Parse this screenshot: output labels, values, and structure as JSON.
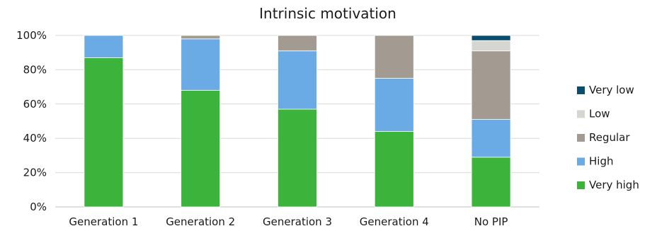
{
  "chart_data": {
    "type": "bar",
    "stacked": true,
    "title": "Intrinsic motivation",
    "xlabel": "",
    "ylabel": "",
    "ylim": [
      0,
      100
    ],
    "y_ticks": [
      "0%",
      "20%",
      "40%",
      "60%",
      "80%",
      "100%"
    ],
    "grid": true,
    "legend_position": "right",
    "categories": [
      "Generation 1",
      "Generation 2",
      "Generation 3",
      "Generation 4",
      "No PIP"
    ],
    "series": [
      {
        "name": "Very high",
        "color": "#3cb33b",
        "values": [
          87,
          68,
          57,
          44,
          29
        ]
      },
      {
        "name": "High",
        "color": "#6aabe5",
        "values": [
          13,
          30,
          34,
          31,
          22
        ]
      },
      {
        "name": "Regular",
        "color": "#a39b92",
        "values": [
          0,
          2,
          9,
          25,
          40
        ]
      },
      {
        "name": "Low",
        "color": "#d5d5d1",
        "values": [
          0,
          0,
          0,
          0,
          6
        ]
      },
      {
        "name": "Very low",
        "color": "#0b4d6e",
        "values": [
          0,
          0,
          0,
          0,
          3
        ]
      }
    ],
    "legend_order": [
      "Very low",
      "Low",
      "Regular",
      "High",
      "Very high"
    ]
  }
}
